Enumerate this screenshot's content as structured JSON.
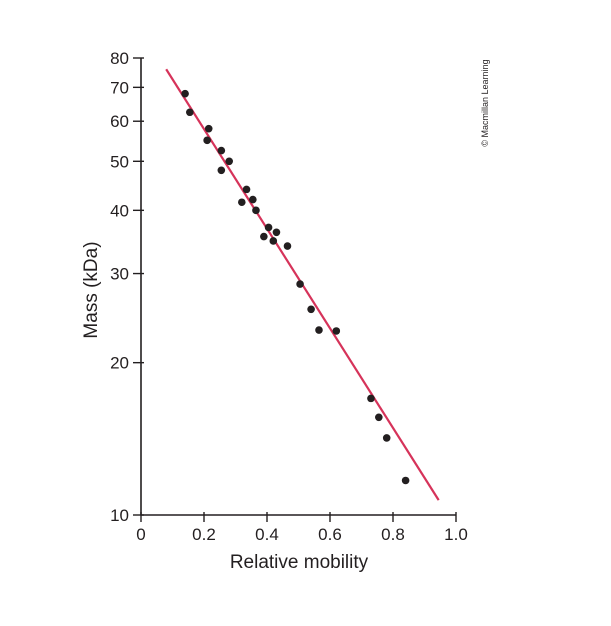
{
  "credit": "© Macmillan Learning",
  "chart_data": {
    "type": "scatter",
    "title": "",
    "xlabel": "Relative mobility",
    "ylabel": "Mass (kDa)",
    "xlim": [
      0,
      1.0
    ],
    "ylim": [
      10,
      80
    ],
    "yscale": "log",
    "grid": false,
    "x_ticks": [
      "0",
      "0.2",
      "0.4",
      "0.6",
      "0.8",
      "1.0"
    ],
    "x_tick_values": [
      0,
      0.2,
      0.4,
      0.6,
      0.8,
      1.0
    ],
    "y_ticks": [
      "10",
      "20",
      "30",
      "40",
      "50",
      "60",
      "70",
      "80"
    ],
    "y_tick_values": [
      10,
      20,
      30,
      40,
      50,
      60,
      70,
      80
    ],
    "colors": {
      "points": "#231f20",
      "fit_line": "#d6335a",
      "axes": "#231f20"
    },
    "series": [
      {
        "type": "scatter",
        "points": [
          {
            "x": 0.14,
            "y": 68
          },
          {
            "x": 0.155,
            "y": 62.5
          },
          {
            "x": 0.215,
            "y": 58
          },
          {
            "x": 0.21,
            "y": 55
          },
          {
            "x": 0.255,
            "y": 52.5
          },
          {
            "x": 0.28,
            "y": 50
          },
          {
            "x": 0.255,
            "y": 48
          },
          {
            "x": 0.335,
            "y": 44
          },
          {
            "x": 0.355,
            "y": 42
          },
          {
            "x": 0.32,
            "y": 41.5
          },
          {
            "x": 0.365,
            "y": 40
          },
          {
            "x": 0.405,
            "y": 37
          },
          {
            "x": 0.43,
            "y": 36.2
          },
          {
            "x": 0.39,
            "y": 35.5
          },
          {
            "x": 0.42,
            "y": 34.8
          },
          {
            "x": 0.465,
            "y": 34
          },
          {
            "x": 0.505,
            "y": 28.6
          },
          {
            "x": 0.54,
            "y": 25.5
          },
          {
            "x": 0.565,
            "y": 23.2
          },
          {
            "x": 0.62,
            "y": 23.1
          },
          {
            "x": 0.73,
            "y": 17
          },
          {
            "x": 0.755,
            "y": 15.6
          },
          {
            "x": 0.78,
            "y": 14.2
          },
          {
            "x": 0.84,
            "y": 11.7
          }
        ]
      },
      {
        "type": "line",
        "points": [
          {
            "x": 0.08,
            "y": 76
          },
          {
            "x": 0.945,
            "y": 10.7
          }
        ]
      }
    ]
  }
}
